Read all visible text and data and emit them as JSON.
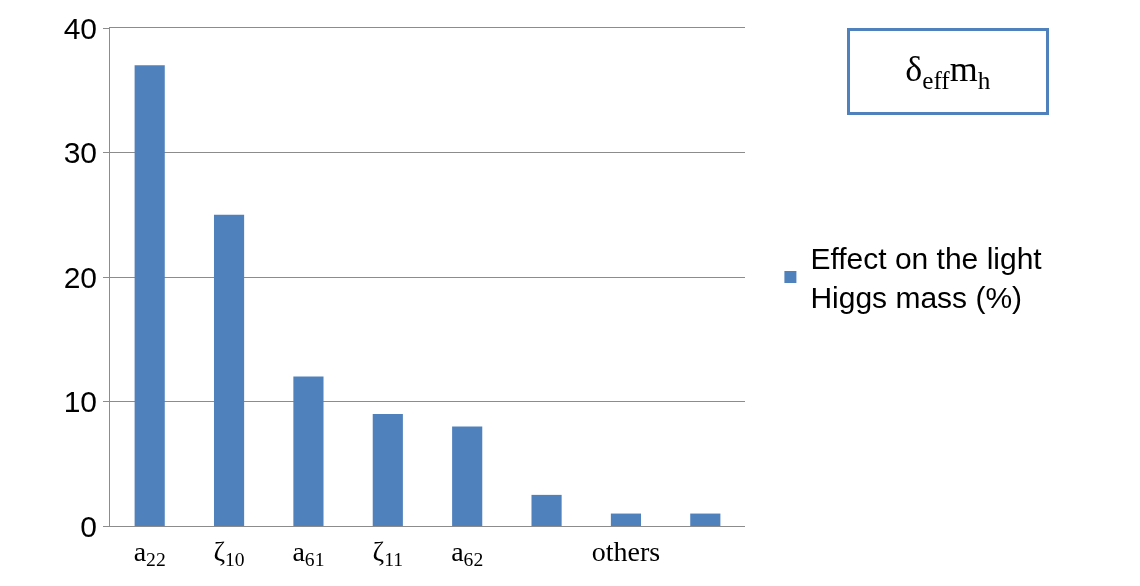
{
  "chart_data": {
    "type": "bar",
    "categories": [
      "a$_{22}$",
      "ζ$_{10}$",
      "a$_{61}$",
      "ζ$_{11}$",
      "a$_{62}$",
      null,
      "others",
      null
    ],
    "series": [
      {
        "name": "Effect on the light Higgs mass (%)",
        "color": "#4f81bd",
        "values": [
          37,
          25,
          12,
          9,
          8,
          2.5,
          1,
          1
        ]
      }
    ],
    "ylim": [
      0,
      40
    ],
    "yticks": [
      0,
      10,
      20,
      30,
      40
    ],
    "grid": "y",
    "legend": "right",
    "annotations": [
      "δ$_{eff}$m$_{h}$"
    ]
  }
}
